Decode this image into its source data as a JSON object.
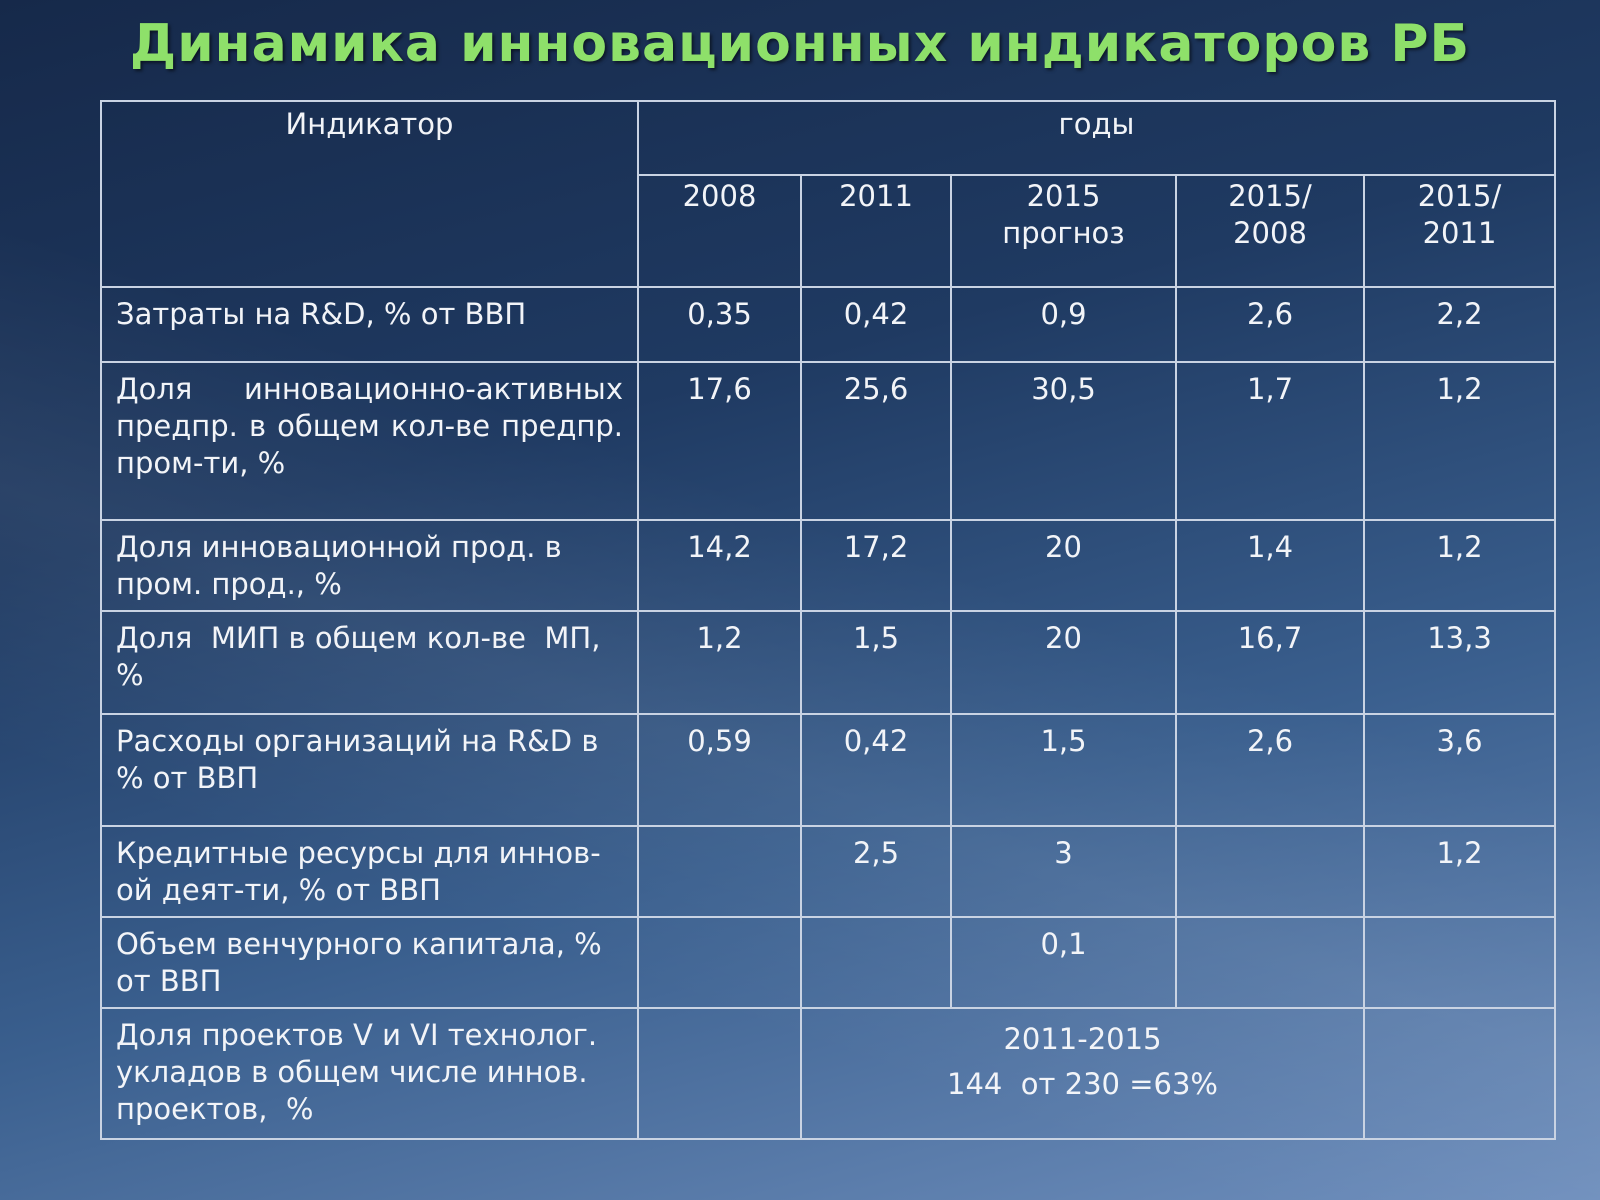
{
  "title": "Динамика инновационных индикаторов РБ",
  "header": {
    "indicator": "Индикатор",
    "years": "годы",
    "columns": [
      {
        "line1": "2008",
        "line2": ""
      },
      {
        "line1": "2011",
        "line2": ""
      },
      {
        "line1": "2015",
        "line2": "прогноз"
      },
      {
        "line1": "2015/",
        "line2": "2008"
      },
      {
        "line1": "2015/",
        "line2": "2011"
      }
    ]
  },
  "rows": [
    {
      "label": "Затраты на R&D, % от ВВП",
      "v2008": "0,35",
      "v2011": "0,42",
      "v2015": "0,9",
      "r2008": "2,6",
      "r2011": "2,2"
    },
    {
      "label": "Доля инновационно-активных предпр. в общем кол-ве предпр. пром-ти, %",
      "v2008": "17,6",
      "v2011": "25,6",
      "v2015": "30,5",
      "r2008": "1,7",
      "r2011": "1,2"
    },
    {
      "label": "Доля инновационной прод. в пром. прод., %",
      "v2008": "14,2",
      "v2011": "17,2",
      "v2015": "20",
      "r2008": "1,4",
      "r2011": "1,2"
    },
    {
      "label": "Доля  МИП в общем кол-ве  МП, %",
      "v2008": "1,2",
      "v2011": "1,5",
      "v2015": "20",
      "r2008": "16,7",
      "r2011": "13,3"
    },
    {
      "label": "Расходы организаций на R&D в % от ВВП",
      "v2008": "0,59",
      "v2011": "0,42",
      "v2015": "1,5",
      "r2008": "2,6",
      "r2011": "3,6"
    },
    {
      "label": "Кредитные ресурсы для иннов-ой деят-ти, % от ВВП",
      "v2008": "",
      "v2011": "2,5",
      "v2015": "3",
      "r2008": "",
      "r2011": "1,2"
    },
    {
      "label": "Объем венчурного капитала, % от ВВП",
      "v2008": "",
      "v2011": "",
      "v2015": "0,1",
      "r2008": "",
      "r2011": ""
    },
    {
      "label": "Доля проектов V и VI технолог. укладов в общем числе иннов. проектов,  %",
      "v2008": "",
      "merged_line1": "2011-2015",
      "merged_line2": "144  от 230 =63%",
      "r2008": "",
      "r2011": ""
    }
  ]
}
